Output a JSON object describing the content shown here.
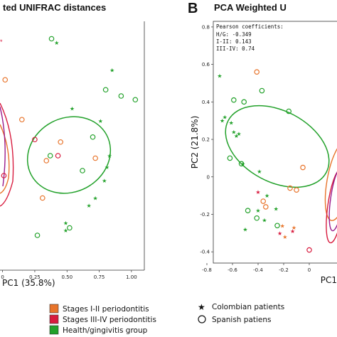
{
  "panels": {
    "a": {
      "title": "ted UNIFRAC distances",
      "xlabel": "PC1 (35.8%)"
    },
    "b": {
      "letter": "B",
      "title": "PCA Weighted U",
      "xlabel": "PC1",
      "ylabel": "PC2 (21.8%)"
    }
  },
  "pearson": {
    "heading": "Pearson coefficients:",
    "lines": [
      "H/G: -0.349",
      "I-II: 0.143",
      "III-IV: 0.74"
    ]
  },
  "legend": {
    "groups": [
      {
        "label": "Stages I-II periodontitis",
        "color": "#e8742b"
      },
      {
        "label": "Stages III-IV periodontitis",
        "color": "#d81b3e"
      },
      {
        "label": "Health/gingivitis group",
        "color": "#22a12a"
      }
    ],
    "markers": [
      {
        "label": "Colombian patients",
        "icon": "star-icon"
      },
      {
        "label": "Spanish patiens",
        "icon": "circle-icon"
      }
    ]
  },
  "chart_data": [
    {
      "type": "scatter",
      "title": "ted UNIFRAC distances",
      "xlabel": "PC1 (35.8%)",
      "ylabel": "",
      "x_ticks": [
        "0",
        "0.25",
        "0.50",
        "0.75",
        "1.00"
      ],
      "xlim": [
        -0.02,
        1.1
      ],
      "ylim": [
        -1.0,
        1.0
      ],
      "series": [
        {
          "group": "health",
          "marker": "circle",
          "points": [
            [
              0.38,
              0.86
            ],
            [
              0.8,
              0.45
            ],
            [
              0.92,
              0.4
            ],
            [
              1.03,
              0.37
            ],
            [
              0.37,
              -0.08
            ],
            [
              0.7,
              0.07
            ],
            [
              0.62,
              -0.2
            ],
            [
              0.27,
              -0.72
            ],
            [
              0.52,
              -0.66
            ]
          ]
        },
        {
          "group": "health",
          "marker": "star",
          "points": [
            [
              0.42,
              0.83
            ],
            [
              0.85,
              0.61
            ],
            [
              0.54,
              0.3
            ],
            [
              0.76,
              0.2
            ],
            [
              0.81,
              -0.17
            ],
            [
              0.83,
              -0.08
            ],
            [
              0.79,
              -0.28
            ],
            [
              0.72,
              -0.42
            ],
            [
              0.67,
              -0.48
            ],
            [
              0.49,
              -0.62
            ],
            [
              0.49,
              -0.68
            ]
          ]
        },
        {
          "group": "I-II",
          "marker": "circle",
          "points": [
            [
              0.02,
              0.53
            ],
            [
              0.15,
              0.21
            ],
            [
              0.34,
              -0.12
            ],
            [
              0.45,
              0.03
            ],
            [
              0.72,
              -0.1
            ],
            [
              0.31,
              -0.42
            ]
          ]
        },
        {
          "group": "III-IV",
          "marker": "circle",
          "points": [
            [
              0.25,
              0.05
            ],
            [
              0.43,
              -0.08
            ],
            [
              0.01,
              -0.24
            ]
          ]
        }
      ]
    },
    {
      "type": "scatter",
      "title": "PCA Weighted U",
      "xlabel": "PC1",
      "ylabel": "PC2 (21.8%)",
      "x_ticks": [
        "-0.8",
        "-0.6",
        "-0.4",
        "-0.2",
        "0"
      ],
      "y_ticks": [
        "0.8",
        "0.6",
        "0.4",
        "0.2",
        "0",
        "-0.2",
        "-0.4"
      ],
      "xlim": [
        -0.75,
        0.25
      ],
      "ylim": [
        -0.46,
        0.83
      ],
      "series": [
        {
          "group": "health",
          "marker": "circle",
          "points": [
            [
              -0.59,
              0.41
            ],
            [
              -0.37,
              0.46
            ],
            [
              -0.51,
              0.4
            ],
            [
              -0.62,
              0.1
            ],
            [
              -0.53,
              0.07
            ],
            [
              -0.48,
              -0.18
            ],
            [
              -0.41,
              -0.22
            ],
            [
              -0.25,
              -0.26
            ],
            [
              -0.16,
              0.35
            ]
          ]
        },
        {
          "group": "health",
          "marker": "star",
          "points": [
            [
              -0.7,
              0.54
            ],
            [
              -0.66,
              0.32
            ],
            [
              -0.68,
              0.3
            ],
            [
              -0.61,
              0.29
            ],
            [
              -0.59,
              0.24
            ],
            [
              -0.57,
              0.22
            ],
            [
              -0.55,
              0.23
            ],
            [
              -0.52,
              0.07
            ],
            [
              -0.39,
              0.03
            ],
            [
              -0.33,
              -0.1
            ],
            [
              -0.26,
              -0.17
            ],
            [
              -0.4,
              -0.18
            ],
            [
              -0.35,
              -0.23
            ],
            [
              -0.5,
              -0.28
            ]
          ]
        },
        {
          "group": "I-II",
          "marker": "circle",
          "points": [
            [
              -0.41,
              0.56
            ],
            [
              -0.36,
              -0.13
            ],
            [
              -0.34,
              -0.16
            ],
            [
              -0.15,
              -0.06
            ],
            [
              -0.1,
              -0.07
            ],
            [
              -0.05,
              0.05
            ]
          ]
        },
        {
          "group": "I-II",
          "marker": "star",
          "points": [
            [
              -0.21,
              -0.26
            ],
            [
              -0.19,
              -0.32
            ],
            [
              -0.12,
              -0.27
            ]
          ]
        },
        {
          "group": "III-IV",
          "marker": "circle",
          "points": [
            [
              0.0,
              -0.39
            ]
          ]
        },
        {
          "group": "III-IV",
          "marker": "star",
          "points": [
            [
              -0.4,
              -0.08
            ],
            [
              -0.23,
              -0.3
            ],
            [
              -0.13,
              -0.29
            ]
          ]
        }
      ]
    }
  ]
}
